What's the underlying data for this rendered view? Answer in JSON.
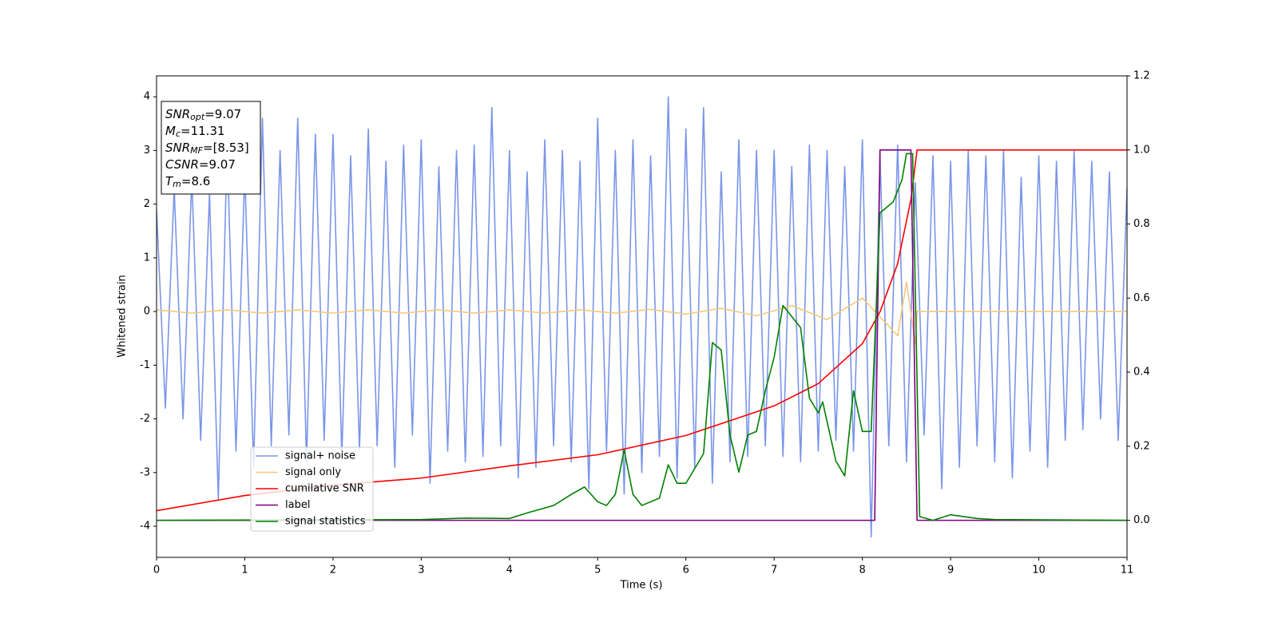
{
  "chart_data": {
    "type": "line",
    "xlabel": "Time (s)",
    "ylabel": "Whitened strain",
    "xlim": [
      0,
      11
    ],
    "xticks": [
      0,
      1,
      2,
      3,
      4,
      5,
      6,
      7,
      8,
      9,
      10,
      11
    ],
    "ylim": [
      -4.58,
      4.39
    ],
    "yticks": [
      -4,
      -3,
      -2,
      -1,
      0,
      1,
      2,
      3,
      4
    ],
    "y2lim": [
      -0.1,
      1.2
    ],
    "y2ticks": [
      {
        "value": 0,
        "label": "0.0"
      },
      {
        "value": 0.2,
        "label": "0.2"
      },
      {
        "value": 0.4,
        "label": "0.4"
      },
      {
        "value": 0.6,
        "label": "0.6"
      },
      {
        "value": 0.8,
        "label": "0.8"
      },
      {
        "value": 1,
        "label": "1.0"
      },
      {
        "value": 1.2,
        "label": "1.2"
      }
    ],
    "legend": "lower left",
    "annotations": [
      {
        "symbol": "SNR",
        "subscript": "opt",
        "text": "=9.07"
      },
      {
        "symbol": "M",
        "subscript": "c",
        "text": "=11.31"
      },
      {
        "symbol": "SNR",
        "subscript": "MF",
        "text": "=[8.53]"
      },
      {
        "symbol": "CSNR",
        "text": "=9.07"
      },
      {
        "symbol": "T",
        "subscript": "m",
        "text": "=8.6"
      }
    ],
    "series": [
      {
        "name": "signal+ noise",
        "color": "#7a95e9",
        "axis": "y",
        "x": [
          0,
          0.1,
          0.2,
          0.3,
          0.4,
          0.5,
          0.6,
          0.7,
          0.8,
          0.9,
          1,
          1.1,
          1.2,
          1.3,
          1.4,
          1.5,
          1.6,
          1.7,
          1.8,
          1.9,
          2,
          2.1,
          2.2,
          2.3,
          2.4,
          2.5,
          2.6,
          2.7,
          2.8,
          2.9,
          3,
          3.1,
          3.2,
          3.3,
          3.4,
          3.5,
          3.6,
          3.7,
          3.8,
          3.9,
          4,
          4.1,
          4.2,
          4.3,
          4.4,
          4.5,
          4.6,
          4.7,
          4.8,
          4.9,
          5,
          5.1,
          5.2,
          5.3,
          5.4,
          5.5,
          5.6,
          5.7,
          5.8,
          5.9,
          6,
          6.1,
          6.2,
          6.3,
          6.4,
          6.5,
          6.6,
          6.7,
          6.8,
          6.9,
          7,
          7.1,
          7.2,
          7.3,
          7.4,
          7.5,
          7.6,
          7.7,
          7.8,
          7.9,
          8,
          8.1,
          8.2,
          8.3,
          8.4,
          8.5,
          8.6,
          8.7,
          8.8,
          8.9,
          9,
          9.1,
          9.2,
          9.3,
          9.4,
          9.5,
          9.6,
          9.7,
          9.8,
          9.9,
          10,
          10.1,
          10.2,
          10.3,
          10.4,
          10.5,
          10.6,
          10.7,
          10.8,
          10.9,
          11
        ],
        "values": [
          1.9,
          -1.8,
          2.3,
          -2.0,
          2.5,
          -2.4,
          2.2,
          -3.5,
          3.1,
          -2.6,
          2.6,
          -2.9,
          3.6,
          -2.5,
          3.0,
          -2.3,
          3.6,
          -2.8,
          3.3,
          -2.4,
          3.3,
          -2.7,
          2.9,
          -2.6,
          3.4,
          -2.5,
          2.8,
          -2.9,
          3.1,
          -2.3,
          3.2,
          -3.2,
          2.7,
          -2.6,
          3.0,
          -2.8,
          3.1,
          -2.7,
          3.8,
          -2.5,
          3.0,
          -3.1,
          2.6,
          -2.9,
          3.2,
          -2.5,
          3.0,
          -2.8,
          2.8,
          -3.3,
          3.6,
          -2.6,
          3.0,
          -3.4,
          3.2,
          -3.0,
          2.9,
          -2.7,
          4.0,
          -3.1,
          3.4,
          -2.9,
          3.8,
          -3.2,
          2.6,
          -2.8,
          3.2,
          -2.7,
          3.0,
          -2.5,
          3.0,
          -2.7,
          2.7,
          -2.8,
          3.1,
          -2.6,
          3.0,
          -2.4,
          2.7,
          -2.6,
          3.2,
          -4.2,
          2.9,
          -2.5,
          3.1,
          -2.8,
          2.4,
          -2.3,
          2.9,
          -3.3,
          2.8,
          -2.9,
          3.0,
          -2.5,
          2.9,
          -2.8,
          3.0,
          -3.1,
          2.5,
          -2.6,
          2.9,
          -2.9,
          2.8,
          -2.4,
          3.0,
          -2.2,
          2.8,
          -2.0,
          2.6,
          -2.4,
          2.3
        ]
      },
      {
        "name": "signal only",
        "color": "#f5c77e",
        "axis": "y",
        "x": [
          0,
          0.4,
          0.8,
          1.2,
          1.6,
          2,
          2.4,
          2.8,
          3.2,
          3.6,
          4,
          4.4,
          4.8,
          5.2,
          5.6,
          6,
          6.4,
          6.8,
          7.2,
          7.6,
          8,
          8.4,
          8.5,
          8.6,
          8.62,
          11
        ],
        "values": [
          0.03,
          -0.03,
          0.03,
          -0.03,
          0.03,
          -0.03,
          0.03,
          -0.03,
          0.03,
          -0.03,
          0.03,
          -0.03,
          0.03,
          -0.03,
          0.04,
          -0.05,
          0.06,
          -0.08,
          0.11,
          -0.15,
          0.25,
          -0.45,
          0.55,
          -0.6,
          0,
          0
        ]
      },
      {
        "name": "cumilative SNR",
        "color": "#ff0000",
        "axis": "y2",
        "x": [
          0,
          1,
          2,
          3,
          4,
          5,
          6,
          7,
          7.5,
          8,
          8.2,
          8.4,
          8.55,
          8.62,
          11
        ],
        "values": [
          0.026,
          0.067,
          0.095,
          0.114,
          0.147,
          0.177,
          0.229,
          0.309,
          0.369,
          0.477,
          0.563,
          0.693,
          0.866,
          1.0,
          1.0
        ]
      },
      {
        "name": "label",
        "color": "#800080",
        "axis": "y2",
        "x": [
          0,
          8.14,
          8.2,
          8.55,
          8.62,
          11
        ],
        "values": [
          0,
          0,
          1,
          1,
          0,
          0
        ]
      },
      {
        "name": "signal statistics",
        "color": "#008000",
        "axis": "y2",
        "x": [
          0,
          3,
          3.5,
          4,
          4.2,
          4.5,
          4.7,
          4.85,
          5,
          5.1,
          5.2,
          5.3,
          5.4,
          5.5,
          5.7,
          5.8,
          5.9,
          6,
          6.2,
          6.3,
          6.4,
          6.5,
          6.6,
          6.7,
          6.8,
          6.9,
          7,
          7.1,
          7.2,
          7.3,
          7.4,
          7.5,
          7.55,
          7.7,
          7.8,
          7.9,
          8,
          8.1,
          8.2,
          8.35,
          8.45,
          8.5,
          8.57,
          8.65,
          8.8,
          9,
          9.3,
          9.5,
          11
        ],
        "values": [
          0,
          0.002,
          0.006,
          0.005,
          0.02,
          0.04,
          0.07,
          0.09,
          0.05,
          0.04,
          0.07,
          0.19,
          0.07,
          0.04,
          0.06,
          0.15,
          0.1,
          0.1,
          0.18,
          0.48,
          0.46,
          0.23,
          0.13,
          0.23,
          0.24,
          0.35,
          0.44,
          0.58,
          0.55,
          0.52,
          0.33,
          0.29,
          0.32,
          0.16,
          0.12,
          0.35,
          0.24,
          0.24,
          0.83,
          0.86,
          0.92,
          0.99,
          0.99,
          0.01,
          0,
          0.015,
          0.005,
          0.002,
          0
        ]
      }
    ]
  }
}
